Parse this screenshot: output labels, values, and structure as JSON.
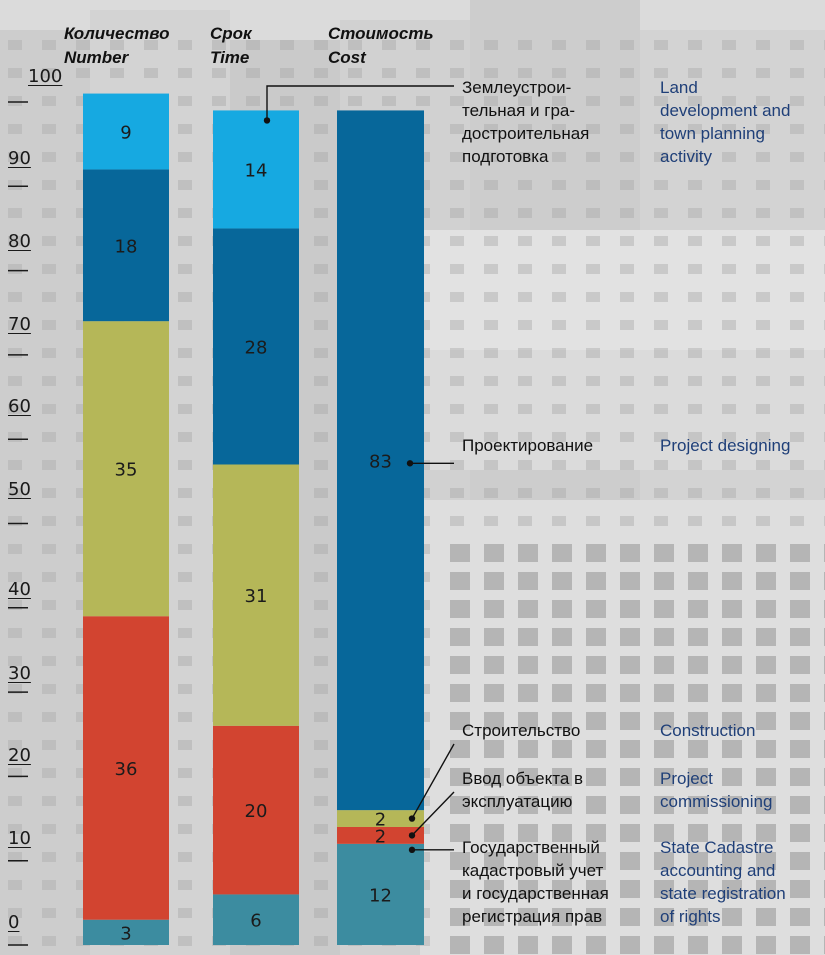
{
  "chart_data": {
    "type": "bar",
    "stacked": true,
    "categories": [
      "Количество Number",
      "Срок Time",
      "Стоимость Cost"
    ],
    "column_headers": [
      {
        "ru": "Количество",
        "en": "Number"
      },
      {
        "ru": "Срок",
        "en": "Time"
      },
      {
        "ru": "Стоимость",
        "en": "Cost"
      }
    ],
    "yticks": [
      0,
      10,
      20,
      30,
      40,
      50,
      60,
      70,
      80,
      90,
      100
    ],
    "ylim": [
      0,
      100
    ],
    "grid": false,
    "series": [
      {
        "key": "cadastre",
        "values": [
          3,
          6,
          12
        ],
        "labels": [
          "3",
          "6",
          "12"
        ],
        "color": "#3c8ca0"
      },
      {
        "key": "commissioning",
        "values": [
          36,
          20,
          2
        ],
        "labels": [
          "36",
          "20",
          "2"
        ],
        "color": "#d24430"
      },
      {
        "key": "construction",
        "values": [
          35,
          31,
          2
        ],
        "labels": [
          "35",
          "31",
          "2"
        ],
        "color": "#b5b758"
      },
      {
        "key": "designing",
        "values": [
          18,
          28,
          83
        ],
        "labels": [
          "18",
          "28",
          "83"
        ],
        "color": "#07679a"
      },
      {
        "key": "land",
        "values": [
          9,
          14,
          0
        ],
        "labels": [
          "9",
          "14",
          ""
        ],
        "color": "#16a9e1"
      }
    ],
    "legend": [
      {
        "key": "land",
        "ru": [
          "Землеустрои-",
          "тельная и гра-",
          "достроительная",
          "подготовка"
        ],
        "en": [
          "Land",
          "development and",
          "town planning",
          "activity"
        ]
      },
      {
        "key": "designing",
        "ru": [
          "Проектирование"
        ],
        "en": [
          "Project designing"
        ]
      },
      {
        "key": "construction",
        "ru": [
          "Строительство"
        ],
        "en": [
          "Construction"
        ]
      },
      {
        "key": "commissioning",
        "ru": [
          "Ввод объекта в",
          "эксплуатацию"
        ],
        "en": [
          "Project",
          "commissioning"
        ]
      },
      {
        "key": "cadastre",
        "ru": [
          "Государственный",
          "кадастровый учет",
          "и государственная",
          "регистрация прав"
        ],
        "en": [
          "State Cadastre",
          "accounting and",
          "state registration",
          "of rights"
        ]
      }
    ]
  }
}
